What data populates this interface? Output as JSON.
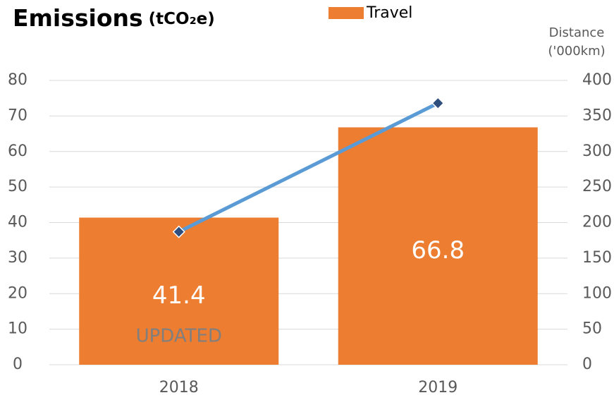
{
  "chart_data": {
    "type": "bar_line",
    "title": "Emissions",
    "title_unit": "(tCO₂e)",
    "y2label": [
      "Distance",
      "('000km)"
    ],
    "categories": [
      "2018",
      "2019"
    ],
    "series": [
      {
        "name": "Travel",
        "color": "#ed7d31",
        "values": [
          41.4,
          66.8
        ]
      },
      {
        "color": "#5b9bd5",
        "marker_color": "#2e4f7e",
        "axis": "y2",
        "values": [
          187,
          368
        ]
      }
    ],
    "annotations": [
      "UPDATED"
    ],
    "ylim": [
      0,
      80
    ],
    "yticks": [
      0,
      10,
      20,
      30,
      40,
      50,
      60,
      70,
      80
    ],
    "y2lim": [
      0,
      400
    ],
    "y2ticks": [
      0,
      50,
      100,
      150,
      200,
      250,
      300,
      350,
      400
    ],
    "grid": true,
    "legend": "top"
  }
}
